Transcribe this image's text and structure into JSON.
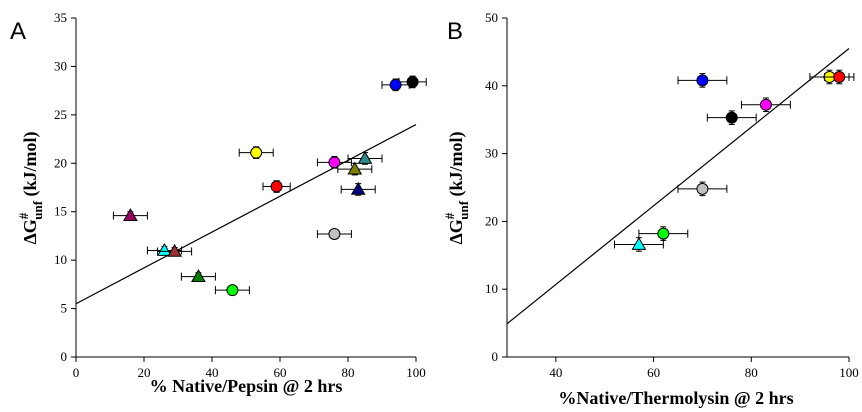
{
  "panels": [
    {
      "label": "A",
      "xlabel": "% Native/Pepsin @ 2 hrs",
      "ylabel_main": "ΔG",
      "ylabel_sup": "#",
      "ylabel_sub": "unf",
      "ylabel_units": " (kJ/mol)"
    },
    {
      "label": "B",
      "xlabel": "%Native/Thermolysin @ 2 hrs",
      "ylabel_main": "ΔG",
      "ylabel_sup": "#",
      "ylabel_sub": "unf",
      "ylabel_units": " (kJ/mol)"
    }
  ],
  "chart_data": [
    {
      "type": "scatter",
      "panel": "A",
      "xlabel": "% Native/Pepsin @ 2 hrs",
      "ylabel": "ΔG#unf (kJ/mol)",
      "xlim": [
        0,
        100
      ],
      "ylim": [
        0,
        35
      ],
      "xticks": [
        0,
        20,
        40,
        60,
        80,
        100
      ],
      "yticks": [
        0,
        5,
        10,
        15,
        20,
        25,
        30,
        35
      ],
      "fit_line": {
        "x": [
          0,
          100
        ],
        "y": [
          5.5,
          24.0
        ]
      },
      "points": [
        {
          "x": 99,
          "y": 28.4,
          "xerr": 4,
          "yerr": 0.6,
          "color": "#000000",
          "marker": "circle"
        },
        {
          "x": 94,
          "y": 28.1,
          "xerr": 4,
          "yerr": 0.6,
          "color": "#0000ff",
          "marker": "circle"
        },
        {
          "x": 53,
          "y": 21.1,
          "xerr": 5,
          "yerr": 0.6,
          "color": "#ffff00",
          "marker": "circle"
        },
        {
          "x": 76,
          "y": 20.1,
          "xerr": 5,
          "yerr": 0.6,
          "color": "#ff00ff",
          "marker": "circle"
        },
        {
          "x": 85,
          "y": 20.5,
          "xerr": 5,
          "yerr": 0.6,
          "color": "#2e8b8b",
          "marker": "triangle"
        },
        {
          "x": 82,
          "y": 19.4,
          "xerr": 5,
          "yerr": 0.6,
          "color": "#808000",
          "marker": "triangle"
        },
        {
          "x": 59,
          "y": 17.6,
          "xerr": 4,
          "yerr": 0.6,
          "color": "#ff0000",
          "marker": "circle"
        },
        {
          "x": 83,
          "y": 17.3,
          "xerr": 5,
          "yerr": 0.6,
          "color": "#000080",
          "marker": "triangle"
        },
        {
          "x": 16,
          "y": 14.6,
          "xerr": 5,
          "yerr": 0.4,
          "color": "#990066",
          "marker": "triangle"
        },
        {
          "x": 76,
          "y": 12.7,
          "xerr": 5,
          "yerr": 0.4,
          "color": "#c0c0c0",
          "marker": "circle"
        },
        {
          "x": 26,
          "y": 11.0,
          "xerr": 5,
          "yerr": 0.4,
          "color": "#00ffff",
          "marker": "triangle"
        },
        {
          "x": 29,
          "y": 10.9,
          "xerr": 5,
          "yerr": 0.4,
          "color": "#993333",
          "marker": "triangle"
        },
        {
          "x": 36,
          "y": 8.3,
          "xerr": 5,
          "yerr": 0.4,
          "color": "#008000",
          "marker": "triangle"
        },
        {
          "x": 46,
          "y": 6.9,
          "xerr": 5,
          "yerr": 0.4,
          "color": "#00ff00",
          "marker": "circle"
        }
      ]
    },
    {
      "type": "scatter",
      "panel": "B",
      "xlabel": "%Native/Thermolysin @ 2 hrs",
      "ylabel": "ΔG#unf (kJ/mol)",
      "xlim": [
        30,
        100
      ],
      "ylim": [
        0,
        50
      ],
      "xticks": [
        40,
        60,
        80,
        100
      ],
      "yticks": [
        0,
        10,
        20,
        30,
        40,
        50
      ],
      "fit_line": {
        "x": [
          30,
          100
        ],
        "y": [
          4.9,
          45.5
        ]
      },
      "points": [
        {
          "x": 70,
          "y": 40.8,
          "xerr": 5,
          "yerr": 1.0,
          "color": "#0000ff",
          "marker": "circle"
        },
        {
          "x": 96,
          "y": 41.3,
          "xerr": 4,
          "yerr": 1.0,
          "color": "#ffff00",
          "marker": "circle"
        },
        {
          "x": 98,
          "y": 41.3,
          "xerr": 3,
          "yerr": 1.0,
          "color": "#ff0000",
          "marker": "circle"
        },
        {
          "x": 83,
          "y": 37.2,
          "xerr": 5,
          "yerr": 1.0,
          "color": "#ff00ff",
          "marker": "circle"
        },
        {
          "x": 76,
          "y": 35.3,
          "xerr": 5,
          "yerr": 1.0,
          "color": "#000000",
          "marker": "circle"
        },
        {
          "x": 70,
          "y": 24.8,
          "xerr": 5,
          "yerr": 1.0,
          "color": "#c0c0c0",
          "marker": "circle"
        },
        {
          "x": 62,
          "y": 18.2,
          "xerr": 5,
          "yerr": 1.0,
          "color": "#00ff00",
          "marker": "circle"
        },
        {
          "x": 57,
          "y": 16.6,
          "xerr": 5,
          "yerr": 1.0,
          "color": "#00ffff",
          "marker": "triangle"
        }
      ]
    }
  ]
}
